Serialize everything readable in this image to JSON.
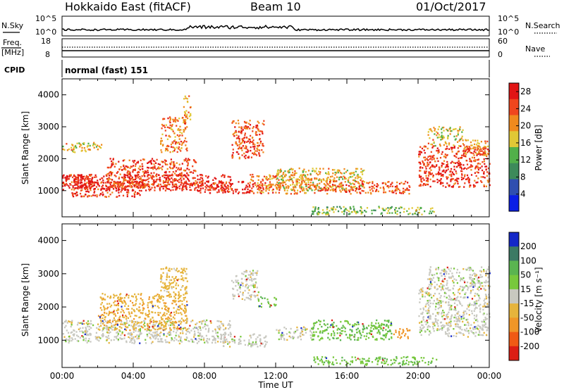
{
  "header": {
    "site": "Hokkaido East (fitACF)",
    "beam": "Beam 10",
    "date": "01/Oct/2017"
  },
  "strip_labels": {
    "nsky": "N.Sky",
    "nsearch": "N.Search",
    "freq_line1": "Freq.",
    "freq_line2": "[MHz]",
    "nave": "Nave",
    "cpid": "CPID",
    "cpid_value": "normal (fast) 151",
    "noise_ticks": [
      "10^5",
      "10^0"
    ],
    "freq_ticks": [
      "18",
      "8"
    ],
    "nave_ticks": [
      "60",
      "0"
    ]
  },
  "chart_data": [
    {
      "type": "heatmap",
      "panel": "power",
      "ylabel": "Slant Range [km]",
      "xlabel": "Time UT",
      "x_ticks": [
        "00:00",
        "04:00",
        "08:00",
        "12:00",
        "16:00",
        "20:00",
        "00:00"
      ],
      "xlim_hours": [
        0,
        24
      ],
      "y_ticks": [
        1000,
        2000,
        3000,
        4000
      ],
      "ylim": [
        180,
        4500
      ],
      "colorbar": {
        "label": "Power [dB]",
        "ticks": [
          4,
          8,
          12,
          16,
          20,
          24,
          28
        ],
        "range": [
          0,
          30
        ],
        "colors": [
          "#0a1ee6",
          "#2f4fb0",
          "#3d8a5a",
          "#52b04a",
          "#e0c836",
          "#f08a1e",
          "#f0461e",
          "#e11414"
        ]
      },
      "regions": [
        {
          "t": [
            0.0,
            2.2
          ],
          "r": [
            2200,
            2500
          ],
          "level": 18
        },
        {
          "t": [
            0.0,
            1.8
          ],
          "r": [
            1100,
            1500
          ],
          "level": 28
        },
        {
          "t": [
            0.5,
            4.5
          ],
          "r": [
            800,
            1300
          ],
          "level": 26
        },
        {
          "t": [
            0.0,
            9.5
          ],
          "r": [
            1000,
            1500
          ],
          "level": 27
        },
        {
          "t": [
            2.5,
            7.5
          ],
          "r": [
            1100,
            2000
          ],
          "level": 25
        },
        {
          "t": [
            5.5,
            7.0
          ],
          "r": [
            2200,
            3300
          ],
          "level": 22
        },
        {
          "t": [
            6.8,
            7.2
          ],
          "r": [
            3200,
            4000
          ],
          "level": 20
        },
        {
          "t": [
            7.5,
            11.5
          ],
          "r": [
            900,
            1300
          ],
          "level": 27
        },
        {
          "t": [
            9.5,
            11.3
          ],
          "r": [
            2000,
            3200
          ],
          "level": 24
        },
        {
          "t": [
            10.5,
            14.0
          ],
          "r": [
            900,
            1500
          ],
          "level": 22
        },
        {
          "t": [
            12.0,
            17.0
          ],
          "r": [
            1000,
            1700
          ],
          "level": 18
        },
        {
          "t": [
            14.0,
            19.5
          ],
          "r": [
            900,
            1300
          ],
          "level": 24
        },
        {
          "t": [
            14.0,
            21.0
          ],
          "r": [
            250,
            500
          ],
          "level": 14
        },
        {
          "t": [
            20.0,
            24.0
          ],
          "r": [
            1100,
            2400
          ],
          "level": 26
        },
        {
          "t": [
            20.5,
            22.5
          ],
          "r": [
            2400,
            3000
          ],
          "level": 18
        },
        {
          "t": [
            22.5,
            24.0
          ],
          "r": [
            2100,
            2600
          ],
          "level": 20
        }
      ]
    },
    {
      "type": "heatmap",
      "panel": "velocity",
      "ylabel": "Slant Range [km]",
      "xlabel": "Time UT",
      "x_ticks": [
        "00:00",
        "04:00",
        "08:00",
        "12:00",
        "16:00",
        "20:00",
        "00:00"
      ],
      "xlim_hours": [
        0,
        24
      ],
      "y_ticks": [
        1000,
        2000,
        3000,
        4000
      ],
      "ylim": [
        180,
        4500
      ],
      "colorbar": {
        "label": "Velocity [m s⁻¹]",
        "ticks": [
          200,
          100,
          50,
          15,
          -15,
          -50,
          -100,
          -200
        ],
        "colors": [
          "#1428c8",
          "#3c7a64",
          "#5ab450",
          "#78c83c",
          "#c8c8c0",
          "#e6b43c",
          "#f09628",
          "#f05a14",
          "#dc1e14"
        ]
      },
      "regions": [
        {
          "t": [
            0.0,
            9.5
          ],
          "r": [
            900,
            1600
          ],
          "value": 0
        },
        {
          "t": [
            2.0,
            7.0
          ],
          "r": [
            1300,
            2400
          ],
          "value": -40
        },
        {
          "t": [
            5.5,
            7.0
          ],
          "r": [
            2300,
            3200
          ],
          "value": -30
        },
        {
          "t": [
            9.0,
            11.5
          ],
          "r": [
            800,
            1200
          ],
          "value": 0
        },
        {
          "t": [
            9.5,
            11.0
          ],
          "r": [
            2200,
            3100
          ],
          "value": 0
        },
        {
          "t": [
            11.0,
            12.0
          ],
          "r": [
            2000,
            2300
          ],
          "value": 40
        },
        {
          "t": [
            12.0,
            14.0
          ],
          "r": [
            1000,
            1400
          ],
          "value": 0
        },
        {
          "t": [
            14.0,
            18.5
          ],
          "r": [
            1000,
            1600
          ],
          "value": 45
        },
        {
          "t": [
            18.5,
            19.5
          ],
          "r": [
            1050,
            1350
          ],
          "value": -80
        },
        {
          "t": [
            14.0,
            21.0
          ],
          "r": [
            250,
            500
          ],
          "value": 40
        },
        {
          "t": [
            20.0,
            24.0
          ],
          "r": [
            1100,
            2600
          ],
          "value": 0
        },
        {
          "t": [
            20.5,
            24.0
          ],
          "r": [
            2600,
            3200
          ],
          "value": 0
        }
      ]
    }
  ]
}
